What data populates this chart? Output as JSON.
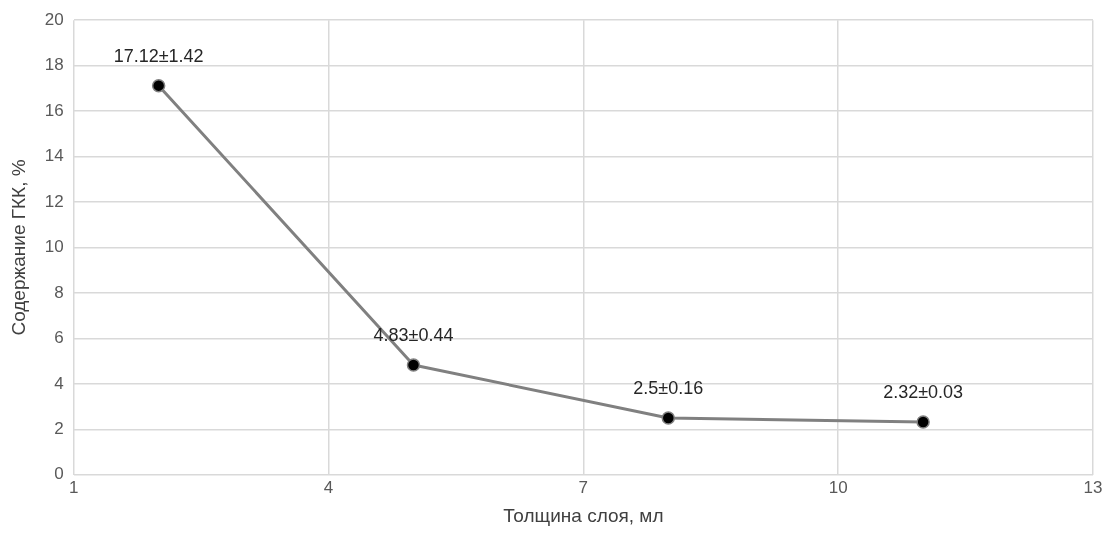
{
  "chart_data": {
    "type": "line",
    "xlabel": "Толщина слоя, мл",
    "ylabel": "Содержание ГКК, %",
    "x": [
      2,
      5,
      8,
      11
    ],
    "series": [
      {
        "color": "#808080",
        "values": [
          17.12,
          4.83,
          2.5,
          2.32
        ],
        "value_labels": [
          "17.12±1.42",
          "4.83±0.44",
          "2.5±0.16",
          "2.32±0.03"
        ]
      }
    ],
    "xlim": [
      1,
      13
    ],
    "xticks": [
      1,
      4,
      7,
      10,
      13
    ],
    "ylim": [
      0,
      20
    ],
    "yticks": [
      0,
      2,
      4,
      6,
      8,
      10,
      12,
      14,
      16,
      18,
      20
    ],
    "grid": true,
    "legend": false,
    "marker": "circle",
    "line_style": "solid"
  }
}
